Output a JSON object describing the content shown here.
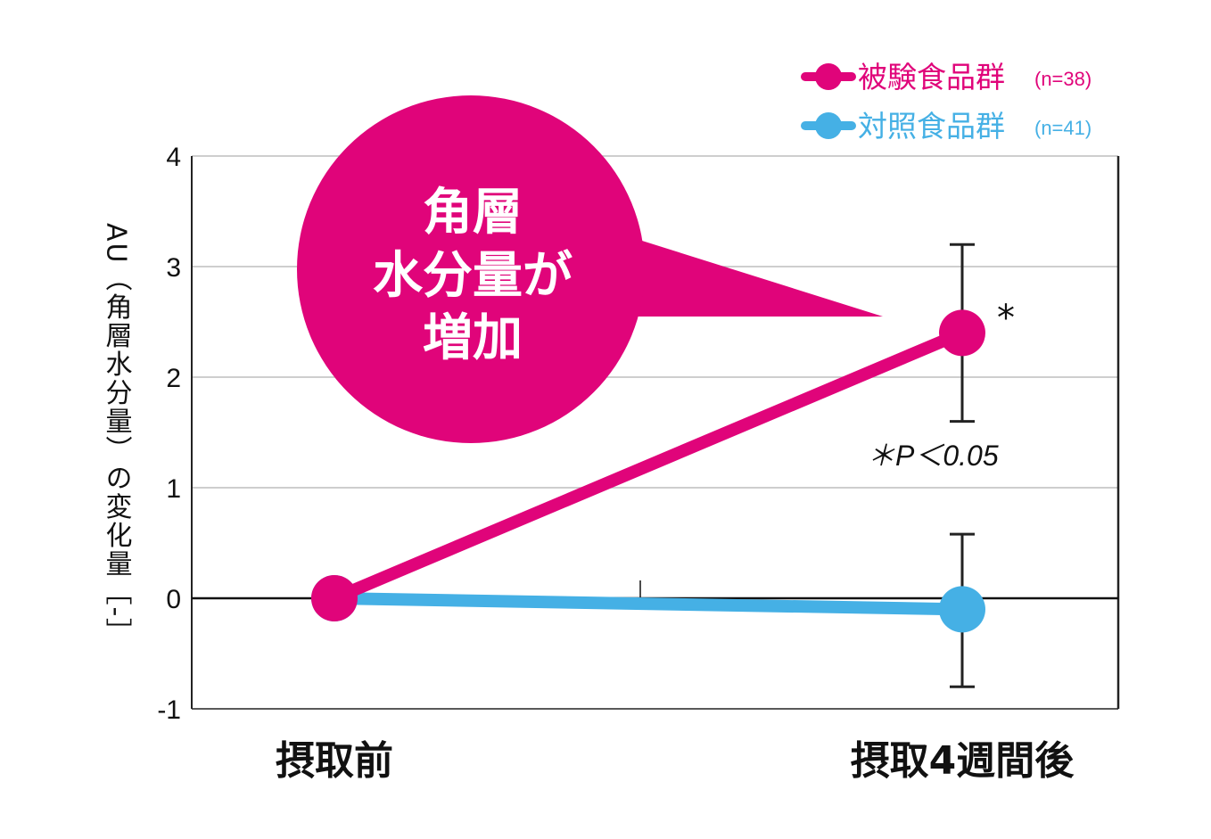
{
  "chart_data": {
    "type": "line",
    "title": "",
    "ylabel": "AU（角層水分量）の変化量［-］",
    "xlabel": "",
    "categories": [
      "摂取前",
      "摂取4週間後"
    ],
    "ylim": [
      -1,
      4
    ],
    "yticks": [
      4,
      3,
      2,
      1,
      0,
      -1
    ],
    "grid": true,
    "legend_position": "top-right",
    "series": [
      {
        "name": "被験食品群",
        "n_label": "(n=38)",
        "color": "#e0047a",
        "values": [
          0,
          2.4
        ],
        "error_upper": [
          null,
          3.2
        ],
        "error_lower": [
          null,
          1.6
        ]
      },
      {
        "name": "対照食品群",
        "n_label": "(n=41)",
        "color": "#45b0e5",
        "values": [
          0,
          -0.1
        ],
        "error_upper": [
          null,
          0.58
        ],
        "error_lower": [
          null,
          -0.8
        ]
      }
    ],
    "annotations": {
      "callout_lines": [
        "角層",
        "水分量が",
        "増加"
      ],
      "star": "*",
      "significance": "＊P＜0.05"
    }
  }
}
